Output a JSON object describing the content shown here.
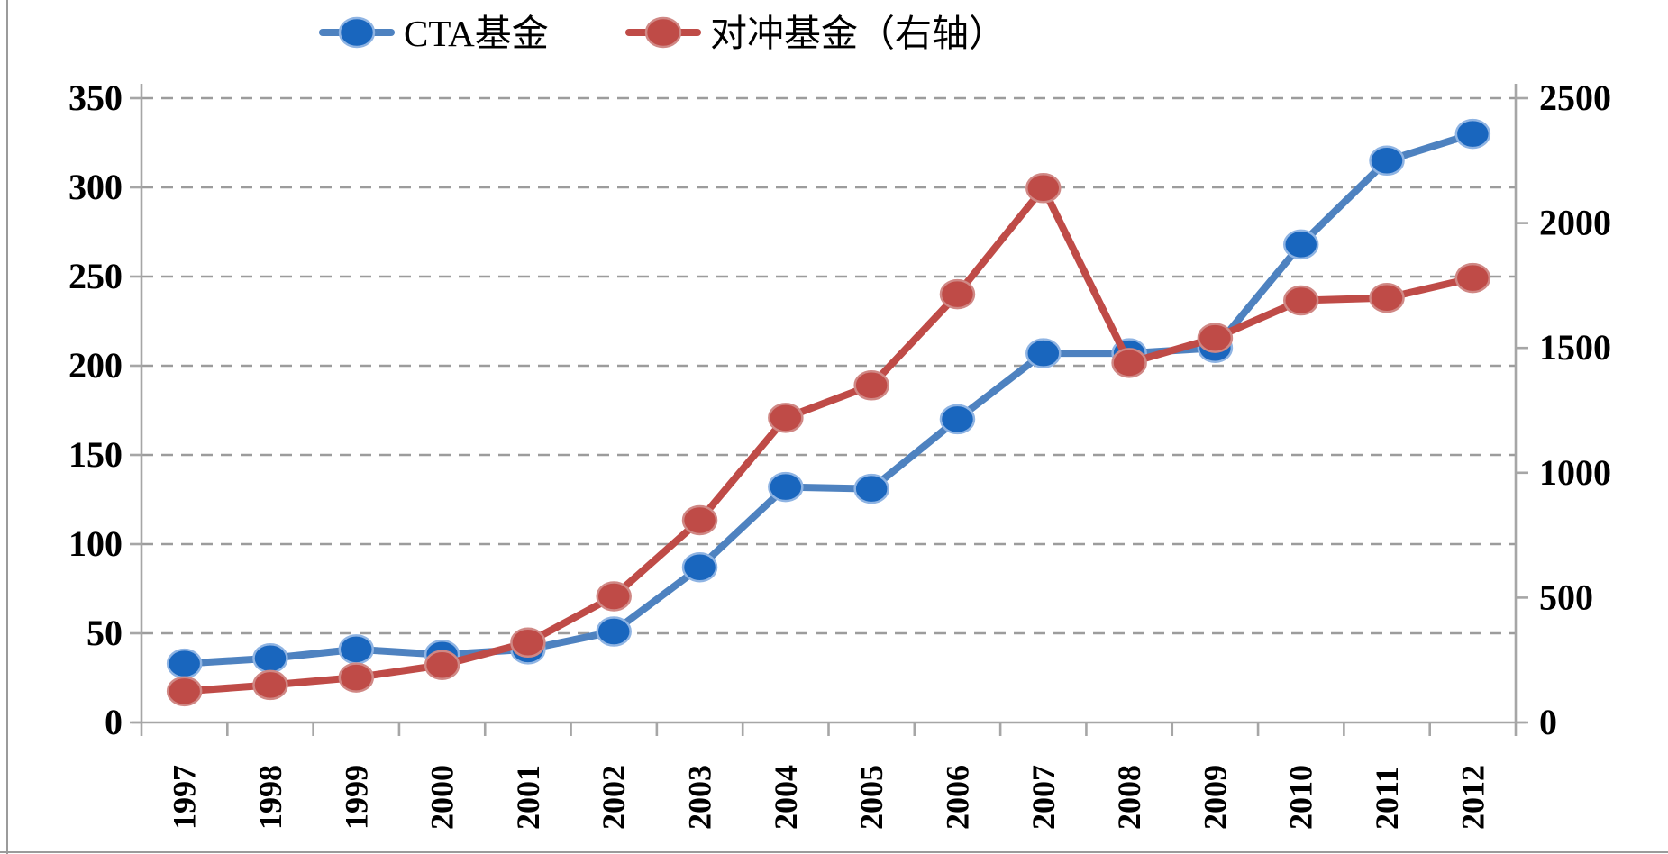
{
  "page": {
    "background": "#ffffff"
  },
  "legend": {
    "position": "top-center",
    "items": [
      {
        "label": "CTA基金",
        "color": "#1966BE"
      },
      {
        "label": "对冲基金（右轴）",
        "color": "#BF4B47"
      }
    ]
  },
  "chart_data": {
    "type": "line",
    "title": "",
    "categories": [
      "1997",
      "1998",
      "1999",
      "2000",
      "2001",
      "2002",
      "2003",
      "2004",
      "2005",
      "2006",
      "2007",
      "2008",
      "2009",
      "2010",
      "2011",
      "2012"
    ],
    "series": [
      {
        "name": "CTA基金",
        "axis": "left",
        "line_color": "#4E82C0",
        "marker_color": "#1966BE",
        "marker_ring": "#8FB4E3",
        "values": [
          33,
          36,
          41,
          38,
          41,
          51,
          87,
          132,
          131,
          170,
          207,
          207,
          210,
          268,
          315,
          330
        ]
      },
      {
        "name": "对冲基金（右轴）",
        "axis": "right",
        "line_color": "#BF4B47",
        "marker_color": "#BF4B47",
        "marker_ring": "#D08885",
        "values": [
          125,
          150,
          180,
          230,
          320,
          505,
          810,
          1220,
          1350,
          1715,
          2140,
          1440,
          1540,
          1690,
          1700,
          1780
        ]
      }
    ],
    "left_axis": {
      "min": 0,
      "max": 350,
      "step": 50,
      "tick_labels": [
        "0",
        "50",
        "100",
        "150",
        "200",
        "250",
        "300",
        "350"
      ]
    },
    "right_axis": {
      "min": 0,
      "max": 2500,
      "step": 500,
      "tick_labels": [
        "0",
        "500",
        "1000",
        "1500",
        "2000",
        "2500"
      ]
    },
    "grid": "horizontal-dashed",
    "marker_style": "circle",
    "colors": {
      "axis": "#A6A6A6",
      "grid": "#9C9C9C",
      "text": "#000000",
      "page_edge": "#9B9B9B"
    }
  }
}
